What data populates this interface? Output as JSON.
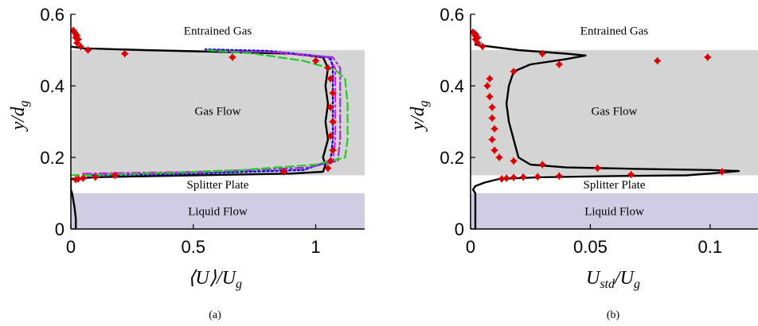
{
  "chart_data": [
    {
      "type": "line",
      "panel_caption": "(a)",
      "xlabel": "⟨U⟩/U",
      "xlabel_sub": "g",
      "ylabel": "y/d",
      "ylabel_sub": "g",
      "xlim": [
        0,
        1.2
      ],
      "ylim": [
        0,
        0.6
      ],
      "x_ticks": [
        0,
        0.5,
        1
      ],
      "x_tick_labels": [
        "0",
        "0.5",
        "1"
      ],
      "y_ticks": [
        0,
        0.2,
        0.4,
        0.6
      ],
      "y_tick_labels": [
        "0",
        "0.2",
        "0.4",
        "0.6"
      ],
      "regions": [
        {
          "label": "Entrained Gas",
          "y_range": [
            0.5,
            0.6
          ],
          "fill": "#ffffff",
          "label_y": 0.555
        },
        {
          "label": "Gas Flow",
          "y_range": [
            0.15,
            0.5
          ],
          "fill": "#d4d4d4",
          "label_y": 0.33
        },
        {
          "label": "Splitter Plate",
          "y_range": [
            0.1,
            0.15
          ],
          "fill": "#ffffff",
          "label_y": 0.125
        },
        {
          "label": "Liquid Flow",
          "y_range": [
            0.0,
            0.1
          ],
          "fill": "#d0cce3",
          "label_y": 0.05
        }
      ],
      "series": [
        {
          "color": "#000000",
          "style": "solid",
          "width": 2.4,
          "points": [
            [
              0.02,
              0.0
            ],
            [
              0.02,
              0.03
            ],
            [
              0.015,
              0.06
            ],
            [
              0.01,
              0.08
            ],
            [
              0.005,
              0.1
            ],
            [
              0.0,
              0.11
            ],
            [
              0.0,
              0.14
            ],
            [
              0.1,
              0.145
            ],
            [
              0.5,
              0.15
            ],
            [
              0.9,
              0.155
            ],
            [
              1.03,
              0.16
            ],
            [
              1.04,
              0.18
            ],
            [
              1.03,
              0.2
            ],
            [
              1.05,
              0.25
            ],
            [
              1.04,
              0.3
            ],
            [
              1.05,
              0.35
            ],
            [
              1.04,
              0.4
            ],
            [
              1.05,
              0.45
            ],
            [
              1.03,
              0.48
            ],
            [
              0.9,
              0.49
            ],
            [
              0.6,
              0.495
            ],
            [
              0.3,
              0.5
            ],
            [
              0.05,
              0.505
            ],
            [
              0.0,
              0.51
            ]
          ]
        },
        {
          "color": "#ff00ff",
          "style": "dashdot",
          "width": 2.0,
          "points": [
            [
              0.05,
              0.155
            ],
            [
              0.5,
              0.16
            ],
            [
              0.95,
              0.17
            ],
            [
              1.07,
              0.19
            ],
            [
              1.08,
              0.25
            ],
            [
              1.08,
              0.35
            ],
            [
              1.08,
              0.45
            ],
            [
              1.05,
              0.48
            ],
            [
              0.8,
              0.495
            ],
            [
              0.55,
              0.5
            ]
          ]
        },
        {
          "color": "#0000ee",
          "style": "dotted",
          "width": 2.2,
          "points": [
            [
              0.05,
              0.15
            ],
            [
              0.5,
              0.155
            ],
            [
              0.95,
              0.165
            ],
            [
              1.06,
              0.19
            ],
            [
              1.07,
              0.25
            ],
            [
              1.07,
              0.35
            ],
            [
              1.07,
              0.45
            ],
            [
              1.06,
              0.48
            ],
            [
              0.8,
              0.498
            ],
            [
              0.55,
              0.502
            ]
          ]
        },
        {
          "color": "#9933cc",
          "style": "dashdot",
          "width": 2.2,
          "points": [
            [
              0.05,
              0.152
            ],
            [
              0.5,
              0.157
            ],
            [
              0.97,
              0.172
            ],
            [
              1.09,
              0.19
            ],
            [
              1.1,
              0.25
            ],
            [
              1.1,
              0.35
            ],
            [
              1.1,
              0.45
            ],
            [
              1.07,
              0.48
            ],
            [
              0.85,
              0.494
            ],
            [
              0.6,
              0.497
            ]
          ]
        },
        {
          "color": "#22cc22",
          "style": "dashed",
          "width": 2.2,
          "points": [
            [
              0.0,
              0.15
            ],
            [
              0.3,
              0.155
            ],
            [
              0.7,
              0.165
            ],
            [
              1.0,
              0.18
            ],
            [
              1.12,
              0.2
            ],
            [
              1.13,
              0.25
            ],
            [
              1.13,
              0.35
            ],
            [
              1.12,
              0.42
            ],
            [
              1.08,
              0.445
            ],
            [
              0.95,
              0.47
            ],
            [
              0.75,
              0.49
            ],
            [
              0.55,
              0.5
            ]
          ]
        }
      ],
      "scatter": {
        "color": "#dd0000",
        "points": [
          [
            0.01,
            0.555
          ],
          [
            0.015,
            0.55
          ],
          [
            0.02,
            0.545
          ],
          [
            0.025,
            0.54
          ],
          [
            0.02,
            0.535
          ],
          [
            0.03,
            0.53
          ],
          [
            0.025,
            0.52
          ],
          [
            0.04,
            0.51
          ],
          [
            0.07,
            0.5
          ],
          [
            0.22,
            0.49
          ],
          [
            0.66,
            0.48
          ],
          [
            1.0,
            0.47
          ],
          [
            1.05,
            0.45
          ],
          [
            1.06,
            0.42
          ],
          [
            1.07,
            0.38
          ],
          [
            1.06,
            0.34
          ],
          [
            1.07,
            0.3
          ],
          [
            1.06,
            0.26
          ],
          [
            1.07,
            0.22
          ],
          [
            1.06,
            0.19
          ],
          [
            1.05,
            0.17
          ],
          [
            0.87,
            0.16
          ],
          [
            0.18,
            0.15
          ],
          [
            0.1,
            0.145
          ],
          [
            0.05,
            0.142
          ],
          [
            0.03,
            0.14
          ],
          [
            0.02,
            0.138
          ]
        ]
      }
    },
    {
      "type": "line",
      "panel_caption": "(b)",
      "xlabel": "U",
      "xlabel_sub": "std",
      "xlabel_rest": "/U",
      "xlabel_sub2": "g",
      "ylabel": "y/d",
      "ylabel_sub": "g",
      "xlim": [
        0,
        0.12
      ],
      "ylim": [
        0,
        0.6
      ],
      "x_ticks": [
        0,
        0.05,
        0.1
      ],
      "x_tick_labels": [
        "0",
        "0.05",
        "0.1"
      ],
      "y_ticks": [
        0,
        0.2,
        0.4,
        0.6
      ],
      "y_tick_labels": [
        "0",
        "0.2",
        "0.4",
        "0.6"
      ],
      "regions": [
        {
          "label": "Entrained Gas",
          "y_range": [
            0.5,
            0.6
          ],
          "fill": "#ffffff",
          "label_y": 0.555
        },
        {
          "label": "Gas Flow",
          "y_range": [
            0.15,
            0.5
          ],
          "fill": "#d4d4d4",
          "label_y": 0.33
        },
        {
          "label": "Splitter Plate",
          "y_range": [
            0.1,
            0.15
          ],
          "fill": "#ffffff",
          "label_y": 0.125
        },
        {
          "label": "Liquid Flow",
          "y_range": [
            0.0,
            0.1
          ],
          "fill": "#d0cce3",
          "label_y": 0.05
        }
      ],
      "series": [
        {
          "color": "#000000",
          "style": "solid",
          "width": 2.4,
          "points": [
            [
              0.002,
              0.0
            ],
            [
              0.002,
              0.06
            ],
            [
              0.002,
              0.1
            ],
            [
              0.001,
              0.11
            ],
            [
              0.002,
              0.12
            ],
            [
              0.006,
              0.13
            ],
            [
              0.012,
              0.14
            ],
            [
              0.03,
              0.145
            ],
            [
              0.06,
              0.148
            ],
            [
              0.09,
              0.15
            ],
            [
              0.1,
              0.155
            ],
            [
              0.112,
              0.162
            ],
            [
              0.1,
              0.165
            ],
            [
              0.07,
              0.168
            ],
            [
              0.04,
              0.172
            ],
            [
              0.025,
              0.18
            ],
            [
              0.02,
              0.2
            ],
            [
              0.018,
              0.25
            ],
            [
              0.016,
              0.3
            ],
            [
              0.015,
              0.35
            ],
            [
              0.016,
              0.4
            ],
            [
              0.018,
              0.44
            ],
            [
              0.025,
              0.46
            ],
            [
              0.04,
              0.475
            ],
            [
              0.048,
              0.485
            ],
            [
              0.04,
              0.49
            ],
            [
              0.02,
              0.5
            ],
            [
              0.008,
              0.51
            ],
            [
              0.002,
              0.515
            ]
          ]
        }
      ],
      "scatter": {
        "color": "#dd0000",
        "points": [
          [
            0.001,
            0.55
          ],
          [
            0.002,
            0.545
          ],
          [
            0.002,
            0.54
          ],
          [
            0.003,
            0.535
          ],
          [
            0.002,
            0.53
          ],
          [
            0.003,
            0.52
          ],
          [
            0.005,
            0.51
          ],
          [
            0.03,
            0.49
          ],
          [
            0.037,
            0.46
          ],
          [
            0.078,
            0.47
          ],
          [
            0.099,
            0.48
          ],
          [
            0.018,
            0.44
          ],
          [
            0.008,
            0.42
          ],
          [
            0.007,
            0.4
          ],
          [
            0.008,
            0.37
          ],
          [
            0.009,
            0.34
          ],
          [
            0.009,
            0.31
          ],
          [
            0.01,
            0.28
          ],
          [
            0.009,
            0.25
          ],
          [
            0.01,
            0.22
          ],
          [
            0.012,
            0.2
          ],
          [
            0.018,
            0.19
          ],
          [
            0.03,
            0.18
          ],
          [
            0.053,
            0.17
          ],
          [
            0.105,
            0.16
          ],
          [
            0.067,
            0.152
          ],
          [
            0.037,
            0.148
          ],
          [
            0.028,
            0.146
          ],
          [
            0.022,
            0.145
          ],
          [
            0.018,
            0.144
          ],
          [
            0.015,
            0.142
          ],
          [
            0.013,
            0.14
          ]
        ]
      }
    }
  ]
}
